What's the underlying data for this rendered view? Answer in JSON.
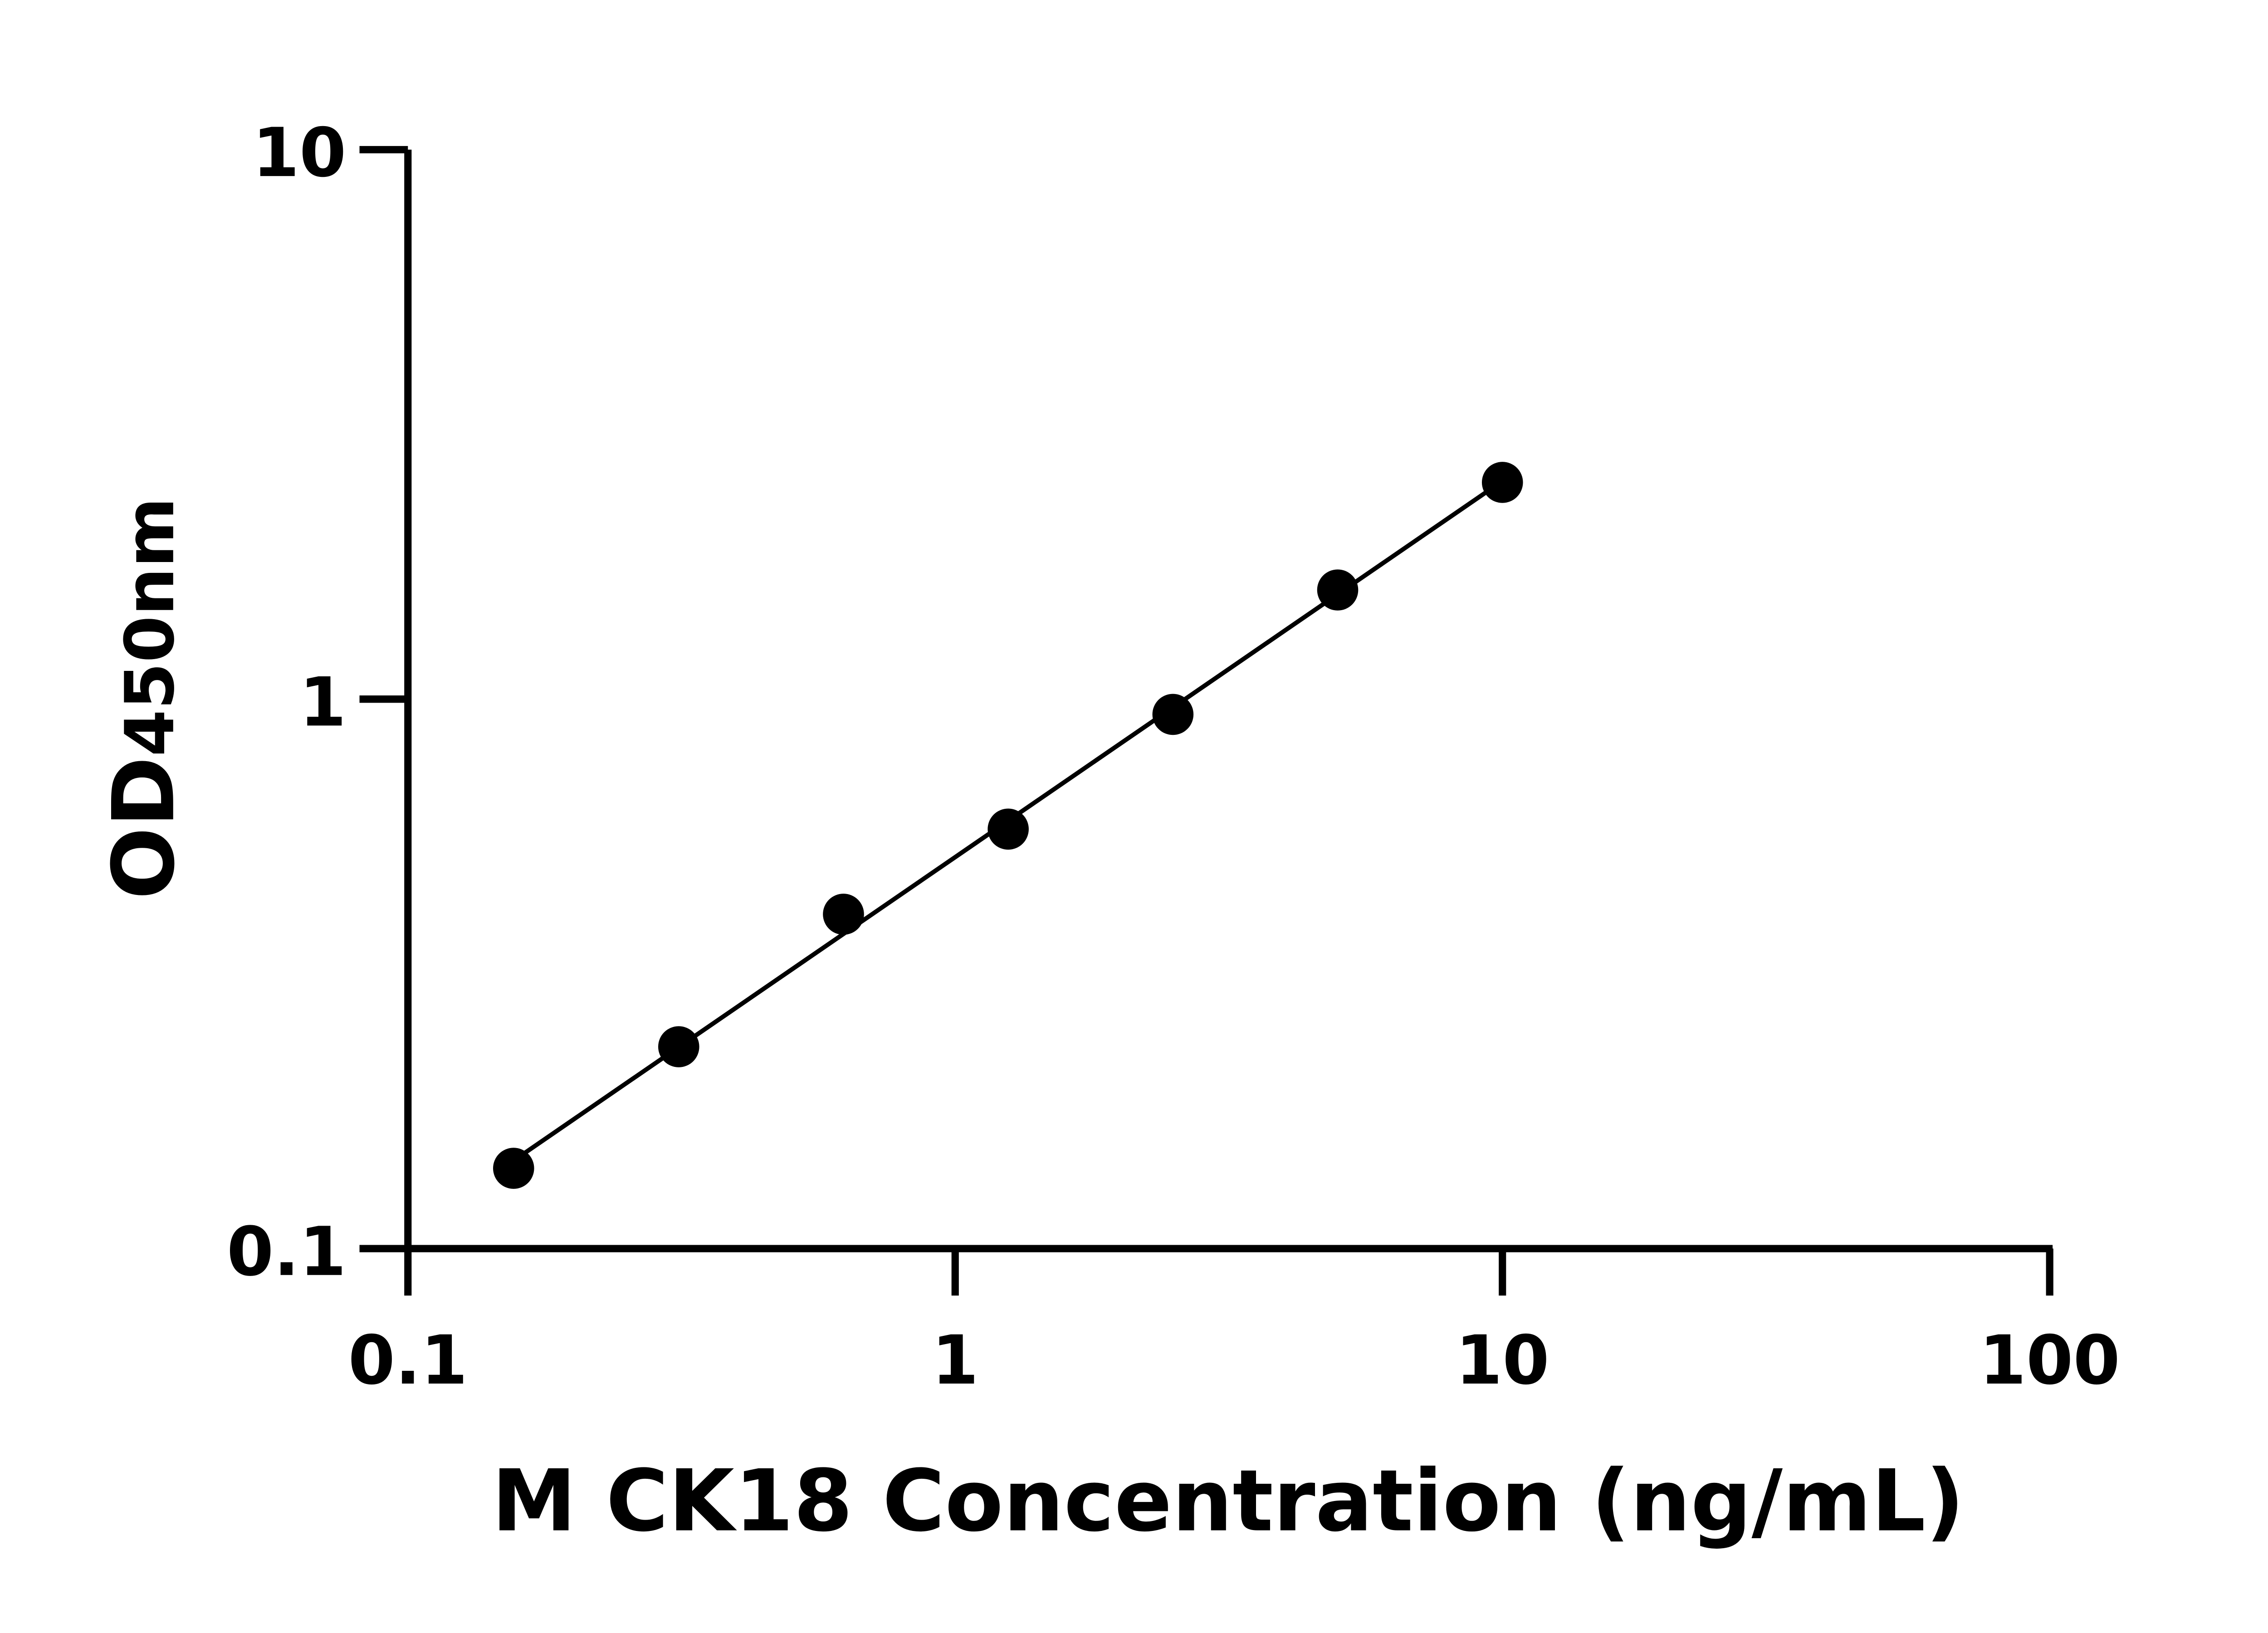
{
  "chart_data": {
    "type": "scatter",
    "title": "",
    "xlabel": "M CK18 Concentration (ng/mL)",
    "ylabel_main": "OD",
    "ylabel_sub": "450nm",
    "x_scale": "log",
    "y_scale": "log",
    "xlim": [
      0.1,
      100
    ],
    "ylim": [
      0.1,
      10
    ],
    "x_ticks": [
      "0.1",
      "1",
      "10",
      "100"
    ],
    "y_ticks": [
      "0.1",
      "1",
      "10"
    ],
    "grid": false,
    "fit_line": "linear fit on log-log axes",
    "series": [
      {
        "x": [
          0.156,
          0.3125,
          0.625,
          1.25,
          2.5,
          5,
          10
        ],
        "y": [
          0.14,
          0.233,
          0.406,
          0.58,
          0.938,
          1.58,
          2.48
        ]
      }
    ],
    "colors": {
      "points": "#000000",
      "line": "#000000",
      "axes": "#000000"
    }
  }
}
